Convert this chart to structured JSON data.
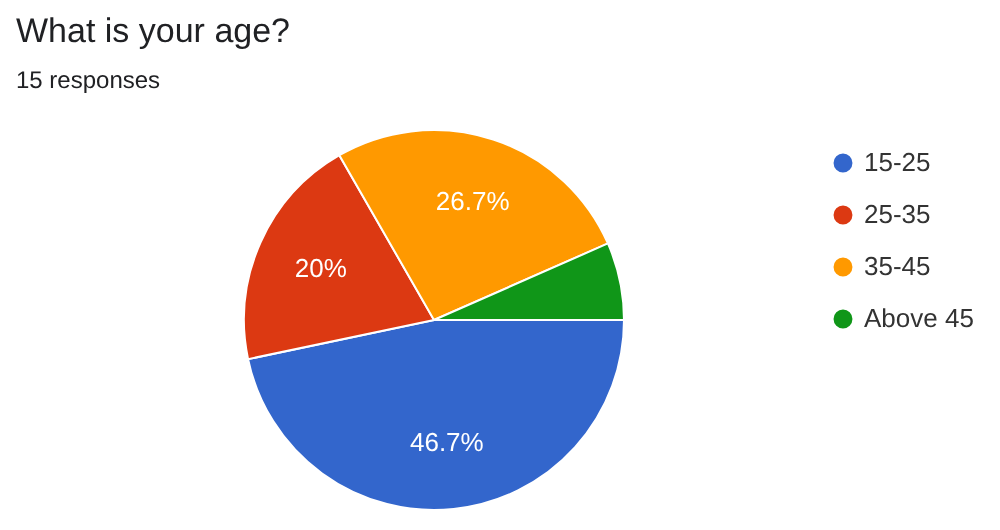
{
  "chart_data": {
    "type": "pie",
    "title": "What is your age?",
    "subtitle": "15 responses",
    "categories": [
      "15-25",
      "25-35",
      "35-45",
      "Above 45"
    ],
    "values": [
      46.7,
      20,
      26.7,
      6.6
    ],
    "colors": [
      "#3366cc",
      "#dc3912",
      "#ff9900",
      "#109618"
    ],
    "value_labels": [
      "46.7%",
      "20%",
      "26.7%",
      null
    ],
    "legend": "right"
  }
}
